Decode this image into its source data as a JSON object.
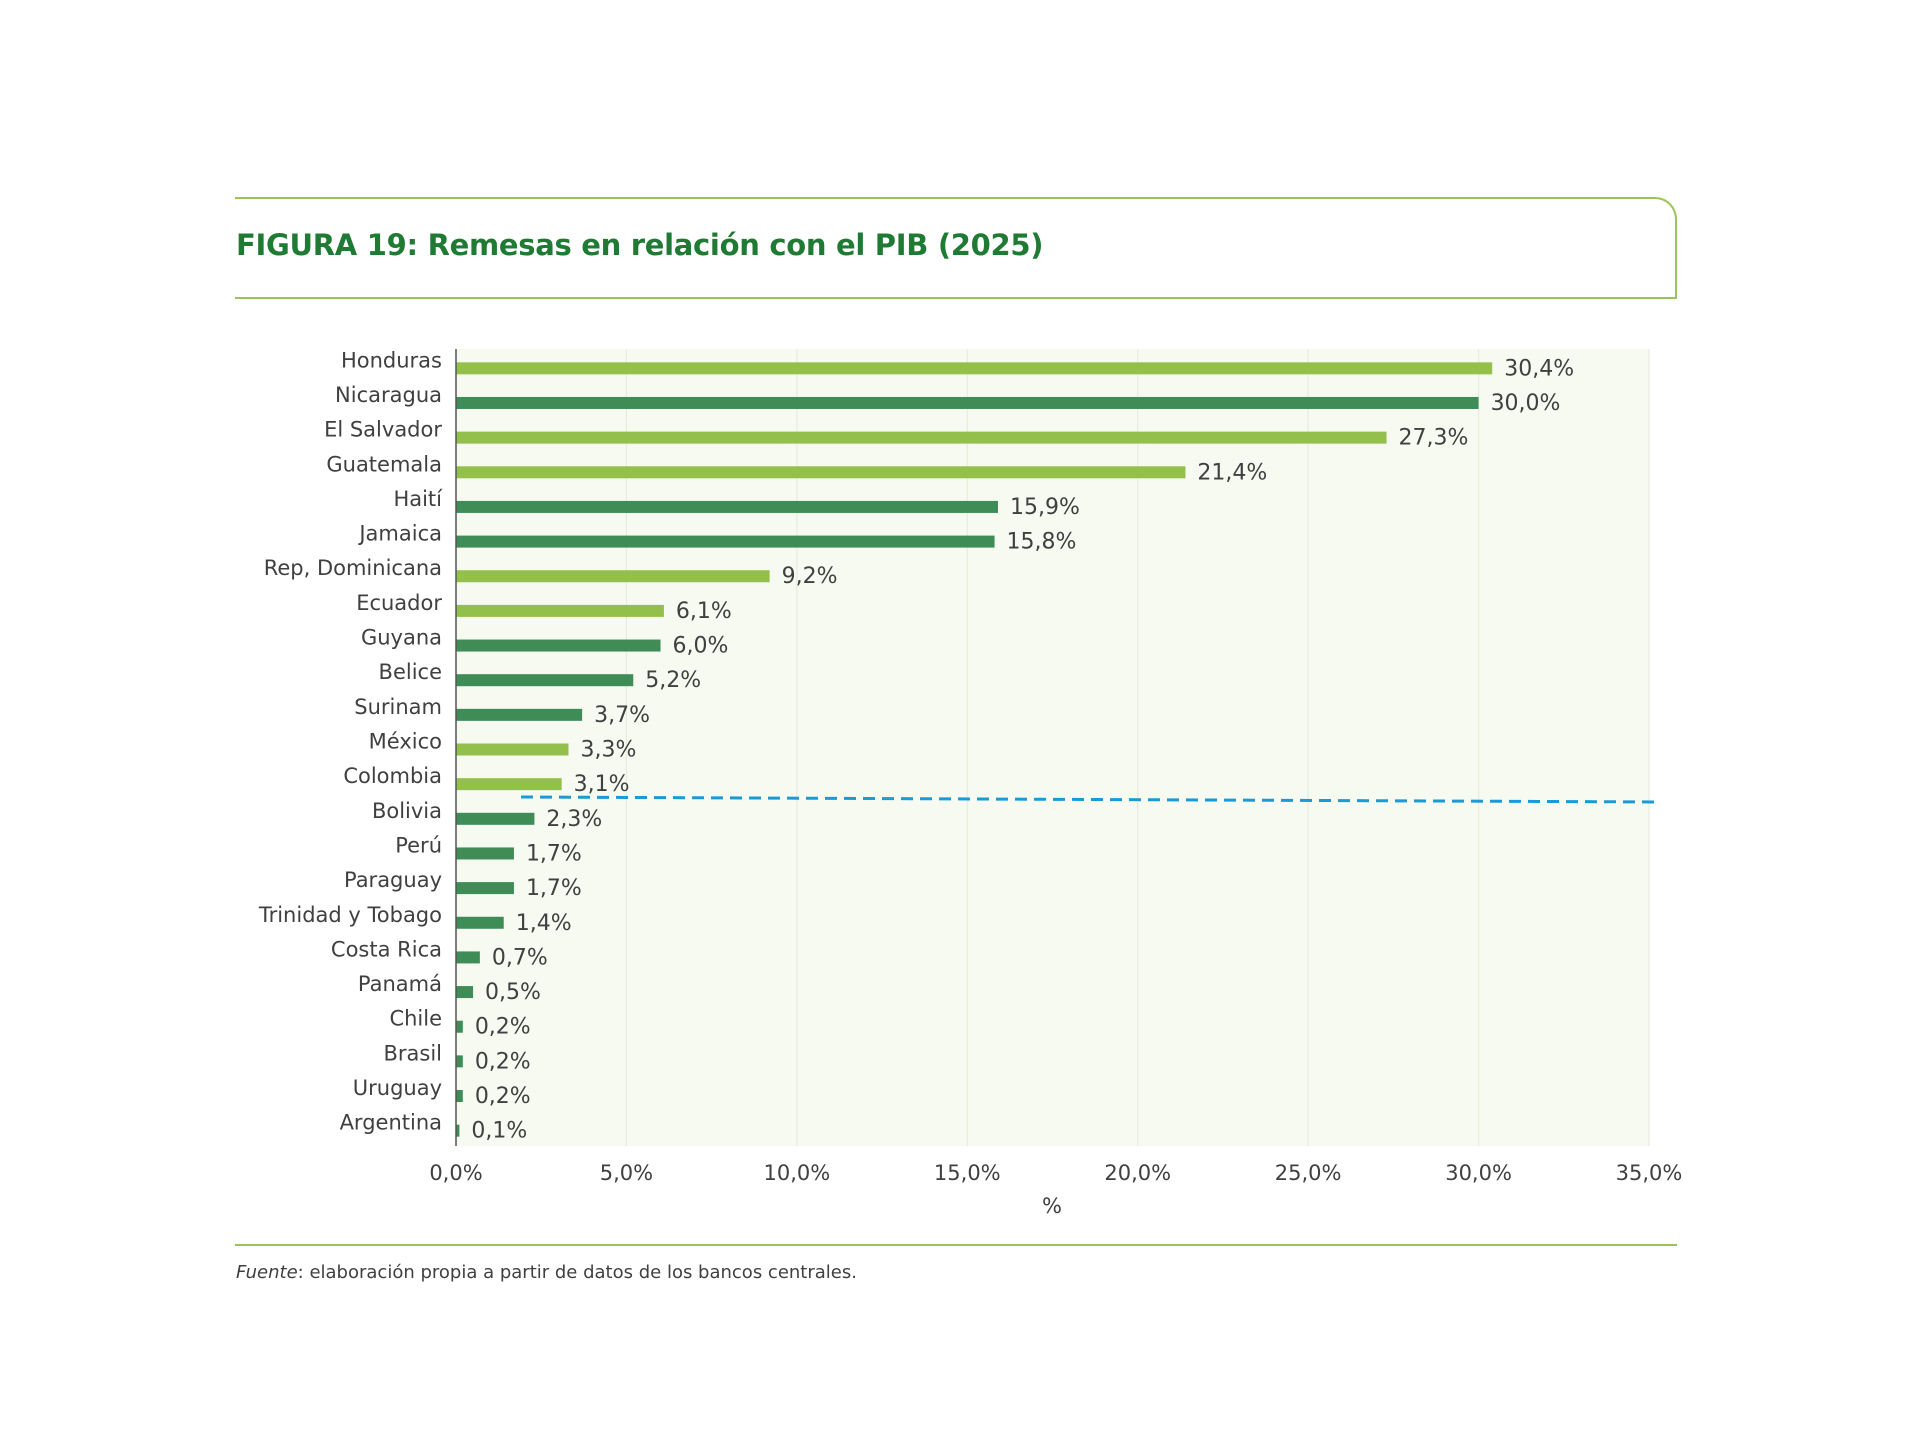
{
  "title": "FIGURA 19: Remesas en relación con el PIB (2025)",
  "source": {
    "label": "Fuente",
    "text": ": elaboración propia a partir de datos de los bancos centrales."
  },
  "chart_data": {
    "type": "bar",
    "orientation": "horizontal",
    "title": "FIGURA 19: Remesas en relación con el PIB (2025)",
    "xlabel": "%",
    "ylabel": "",
    "xlim": [
      0,
      35
    ],
    "xticks": [
      "0,0%",
      "5,0%",
      "10,0%",
      "15,0%",
      "20,0%",
      "25,0%",
      "30,0%",
      "35,0%"
    ],
    "grid": "vertical",
    "colors": {
      "light": "#92c04a",
      "dark": "#3f8c57",
      "reference_line": "#1a9bd7",
      "plot_background": "#f7faf1"
    },
    "reference_line": {
      "style": "dashed",
      "position": "between Colombia and Bolivia"
    },
    "categories": [
      "Honduras",
      "Nicaragua",
      "El Salvador",
      "Guatemala",
      "Haití",
      "Jamaica",
      "Rep, Dominicana",
      "Ecuador",
      "Guyana",
      "Belice",
      "Surinam",
      "México",
      "Colombia",
      "Bolivia",
      "Perú",
      "Paraguay",
      "Trinidad y Tobago",
      "Costa Rica",
      "Panamá",
      "Chile",
      "Brasil",
      "Uruguay",
      "Argentina"
    ],
    "values": [
      30.4,
      30.0,
      27.3,
      21.4,
      15.9,
      15.8,
      9.2,
      6.1,
      6.0,
      5.2,
      3.7,
      3.3,
      3.1,
      2.3,
      1.7,
      1.7,
      1.4,
      0.7,
      0.5,
      0.2,
      0.2,
      0.2,
      0.1
    ],
    "data_labels": [
      "30,4%",
      "30,0%",
      "27,3%",
      "21,4%",
      "15,9%",
      "15,8%",
      "9,2%",
      "6,1%",
      "6,0%",
      "5,2%",
      "3,7%",
      "3,3%",
      "3,1%",
      "2,3%",
      "1,7%",
      "1,7%",
      "1,4%",
      "0,7%",
      "0,5%",
      "0,2%",
      "0,2%",
      "0,2%",
      "0,1%"
    ],
    "bar_colors": [
      "light",
      "dark",
      "light",
      "light",
      "dark",
      "dark",
      "light",
      "light",
      "dark",
      "dark",
      "dark",
      "light",
      "light",
      "dark",
      "dark",
      "dark",
      "dark",
      "dark",
      "dark",
      "dark",
      "dark",
      "dark",
      "dark"
    ]
  }
}
